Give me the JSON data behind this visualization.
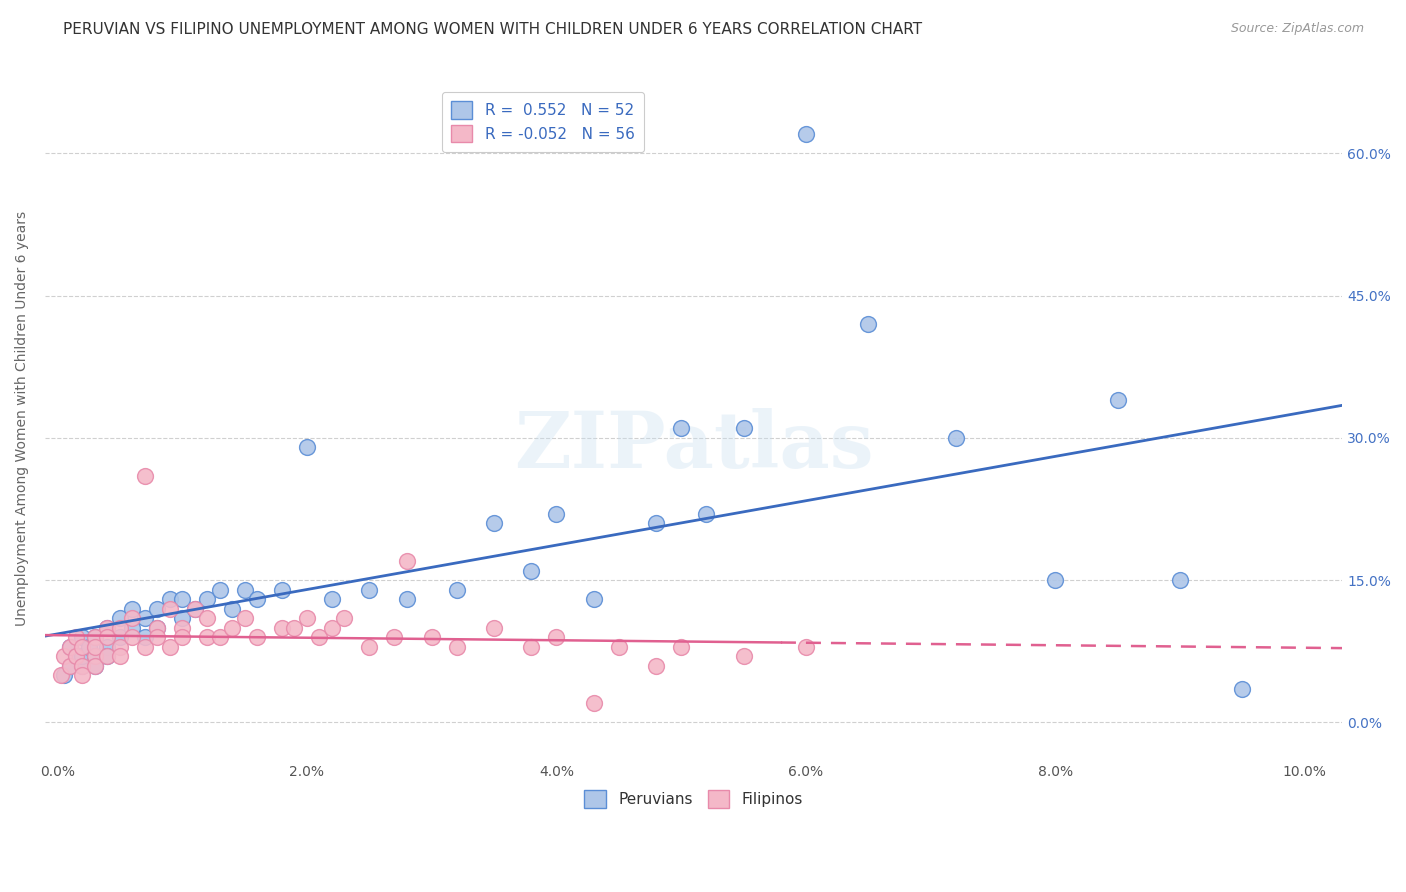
{
  "title": "PERUVIAN VS FILIPINO UNEMPLOYMENT AMONG WOMEN WITH CHILDREN UNDER 6 YEARS CORRELATION CHART",
  "source": "Source: ZipAtlas.com",
  "ylabel": "Unemployment Among Women with Children Under 6 years",
  "xlim": [
    -0.001,
    0.103
  ],
  "ylim": [
    -0.04,
    0.68
  ],
  "xlabel_ticks": [
    "0.0%",
    "2.0%",
    "4.0%",
    "6.0%",
    "8.0%",
    "10.0%"
  ],
  "xlabel_vals": [
    0.0,
    0.02,
    0.04,
    0.06,
    0.08,
    0.1
  ],
  "ylabel_ticks": [
    "0.0%",
    "15.0%",
    "30.0%",
    "45.0%",
    "60.0%"
  ],
  "ylabel_vals": [
    0.0,
    0.15,
    0.3,
    0.45,
    0.6
  ],
  "peruvian_color": "#aec6e8",
  "filipino_color": "#f4b8c8",
  "peruvian_edge_color": "#5b8ed6",
  "filipino_edge_color": "#e88aaa",
  "peruvian_line_color": "#3a6abf",
  "filipino_line_color": "#e06090",
  "tick_color_y": "#4472c4",
  "tick_color_x": "#555555",
  "peruvian_R": 0.552,
  "peruvian_N": 52,
  "filipino_R": -0.052,
  "filipino_N": 56,
  "legend_R_label_1": "R =  0.552   N = 52",
  "legend_R_label_2": "R = -0.052   N = 56",
  "legend_peruvians": "Peruvians",
  "legend_filipinos": "Filipinos",
  "background_color": "#ffffff",
  "grid_color": "#d0d0d0",
  "title_fontsize": 11,
  "axis_label_fontsize": 10,
  "tick_fontsize": 10,
  "watermark": "ZIPatlas",
  "peru_x": [
    0.0005,
    0.001,
    0.001,
    0.0015,
    0.002,
    0.002,
    0.002,
    0.0025,
    0.003,
    0.003,
    0.003,
    0.004,
    0.004,
    0.004,
    0.005,
    0.005,
    0.006,
    0.006,
    0.007,
    0.007,
    0.008,
    0.008,
    0.009,
    0.01,
    0.01,
    0.011,
    0.012,
    0.013,
    0.014,
    0.015,
    0.016,
    0.018,
    0.02,
    0.022,
    0.025,
    0.028,
    0.032,
    0.035,
    0.038,
    0.04,
    0.043,
    0.048,
    0.05,
    0.052,
    0.055,
    0.06,
    0.065,
    0.072,
    0.08,
    0.085,
    0.09,
    0.095
  ],
  "peru_y": [
    0.05,
    0.06,
    0.08,
    0.07,
    0.06,
    0.09,
    0.07,
    0.08,
    0.07,
    0.09,
    0.06,
    0.1,
    0.08,
    0.07,
    0.09,
    0.11,
    0.1,
    0.12,
    0.11,
    0.09,
    0.12,
    0.1,
    0.13,
    0.11,
    0.13,
    0.12,
    0.13,
    0.14,
    0.12,
    0.14,
    0.13,
    0.14,
    0.29,
    0.13,
    0.14,
    0.13,
    0.14,
    0.21,
    0.16,
    0.22,
    0.13,
    0.21,
    0.31,
    0.22,
    0.31,
    0.62,
    0.42,
    0.3,
    0.15,
    0.34,
    0.15,
    0.035
  ],
  "fil_x": [
    0.0003,
    0.0005,
    0.001,
    0.001,
    0.0015,
    0.0015,
    0.002,
    0.002,
    0.002,
    0.003,
    0.003,
    0.003,
    0.003,
    0.004,
    0.004,
    0.004,
    0.005,
    0.005,
    0.005,
    0.006,
    0.006,
    0.007,
    0.007,
    0.008,
    0.008,
    0.009,
    0.009,
    0.01,
    0.01,
    0.011,
    0.012,
    0.012,
    0.013,
    0.014,
    0.015,
    0.016,
    0.018,
    0.019,
    0.02,
    0.021,
    0.022,
    0.023,
    0.025,
    0.027,
    0.028,
    0.03,
    0.032,
    0.035,
    0.038,
    0.04,
    0.043,
    0.045,
    0.048,
    0.05,
    0.055,
    0.06
  ],
  "fil_y": [
    0.05,
    0.07,
    0.06,
    0.08,
    0.07,
    0.09,
    0.06,
    0.08,
    0.05,
    0.07,
    0.09,
    0.06,
    0.08,
    0.1,
    0.07,
    0.09,
    0.08,
    0.1,
    0.07,
    0.09,
    0.11,
    0.26,
    0.08,
    0.1,
    0.09,
    0.12,
    0.08,
    0.1,
    0.09,
    0.12,
    0.09,
    0.11,
    0.09,
    0.1,
    0.11,
    0.09,
    0.1,
    0.1,
    0.11,
    0.09,
    0.1,
    0.11,
    0.08,
    0.09,
    0.17,
    0.09,
    0.08,
    0.1,
    0.08,
    0.09,
    0.02,
    0.08,
    0.06,
    0.08,
    0.07,
    0.08
  ]
}
